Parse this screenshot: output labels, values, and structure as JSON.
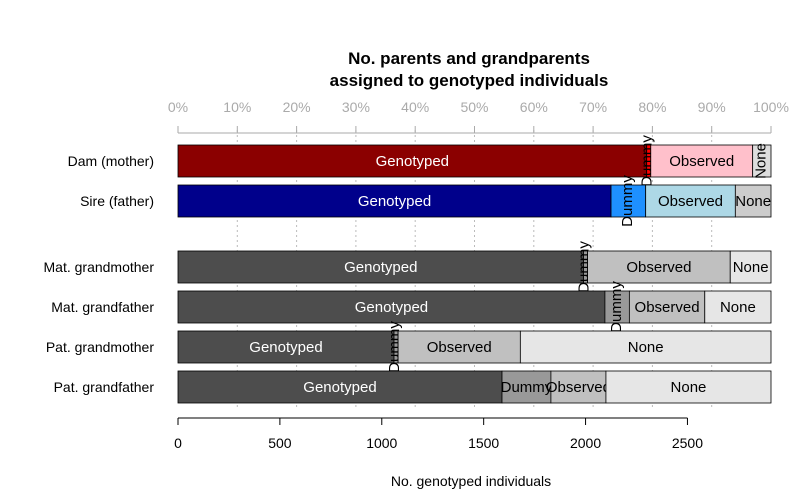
{
  "chart_data": {
    "type": "bar",
    "orientation": "horizontal",
    "stacked": true,
    "title_lines": [
      "No. parents and grandparents",
      "assigned to genotyped individuals"
    ],
    "xlabel": "No. genotyped individuals",
    "xlim": [
      0,
      2910
    ],
    "x_ticks": [
      0,
      500,
      1000,
      1500,
      2000,
      2500
    ],
    "top_axis_ticks": [
      "0%",
      "10%",
      "20%",
      "30%",
      "40%",
      "50%",
      "60%",
      "70%",
      "80%",
      "90%",
      "100%"
    ],
    "segment_order": [
      "Genotyped",
      "Dummy",
      "Observed",
      "None"
    ],
    "categories": [
      "Dam (mother)",
      "Sire (father)",
      "Mat. grandmother",
      "Mat. grandfather",
      "Pat. grandmother",
      "Pat. grandfather"
    ],
    "bars": [
      {
        "category": "Dam (mother)",
        "values": [
          2300,
          20,
          500,
          90
        ],
        "colors": [
          "#8B0000",
          "#ff0000",
          "#ffc0cb",
          "#dddddd"
        ],
        "label_colors": [
          "#ffffff",
          "#000000",
          "#000000",
          "#000000"
        ],
        "labels": [
          "Genotyped",
          "Dummy",
          "Observed",
          "None"
        ]
      },
      {
        "category": "Sire (father)",
        "values": [
          2125,
          170,
          440,
          175
        ],
        "colors": [
          "#00008B",
          "#1e90ff",
          "#add8e6",
          "#cccccc"
        ],
        "label_colors": [
          "#ffffff",
          "#000000",
          "#000000",
          "#000000"
        ],
        "labels": [
          "Genotyped",
          "Dummy",
          "Observed",
          "None"
        ]
      },
      {
        "category": "Mat. grandmother",
        "values": [
          1990,
          20,
          700,
          200
        ],
        "colors": [
          "#4d4d4d",
          "#999999",
          "#c0c0c0",
          "#e6e6e6"
        ],
        "label_colors": [
          "#ffffff",
          "#000000",
          "#000000",
          "#000000"
        ],
        "labels": [
          "Genotyped",
          "Dummy",
          "Observed",
          "None"
        ]
      },
      {
        "category": "Mat. grandfather",
        "values": [
          2095,
          120,
          370,
          325
        ],
        "colors": [
          "#4d4d4d",
          "#999999",
          "#c0c0c0",
          "#e6e6e6"
        ],
        "label_colors": [
          "#ffffff",
          "#000000",
          "#000000",
          "#000000"
        ],
        "labels": [
          "Genotyped",
          "Dummy",
          "Observed",
          "None"
        ]
      },
      {
        "category": "Pat. grandmother",
        "values": [
          1060,
          20,
          600,
          1230
        ],
        "colors": [
          "#4d4d4d",
          "#999999",
          "#c0c0c0",
          "#e6e6e6"
        ],
        "label_colors": [
          "#ffffff",
          "#000000",
          "#000000",
          "#000000"
        ],
        "labels": [
          "Genotyped",
          "Dummy",
          "Observed",
          "None"
        ]
      },
      {
        "category": "Pat. grandfather",
        "values": [
          1590,
          240,
          270,
          810
        ],
        "colors": [
          "#4d4d4d",
          "#999999",
          "#c0c0c0",
          "#e6e6e6"
        ],
        "label_colors": [
          "#ffffff",
          "#000000",
          "#000000",
          "#000000"
        ],
        "labels": [
          "Genotyped",
          "Dummy",
          "Observed",
          "None"
        ]
      }
    ],
    "grid": true
  }
}
